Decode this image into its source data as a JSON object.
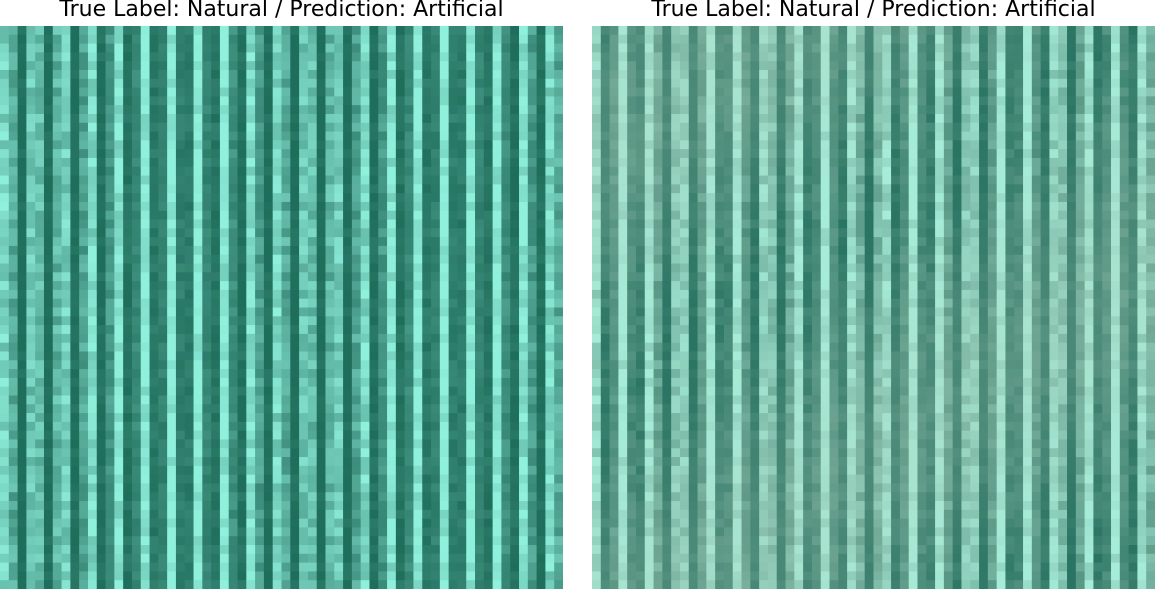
{
  "panels": [
    {
      "title": "True Label: Natural / Prediction: Artificial",
      "true_label": "Natural",
      "prediction": "Artificial",
      "texture": "vertical-stripes",
      "palette": {
        "dark": "#1f6e5c",
        "mid": "#3f8f7e",
        "light": "#8ff0dc"
      }
    },
    {
      "title": "True Label: Natural / Prediction: Artificial",
      "true_label": "Natural",
      "prediction": "Artificial",
      "texture": "vertical-stripes",
      "palette": {
        "dark": "#2a7463",
        "mid": "#5c9a88",
        "light": "#a6ecd8"
      }
    }
  ]
}
